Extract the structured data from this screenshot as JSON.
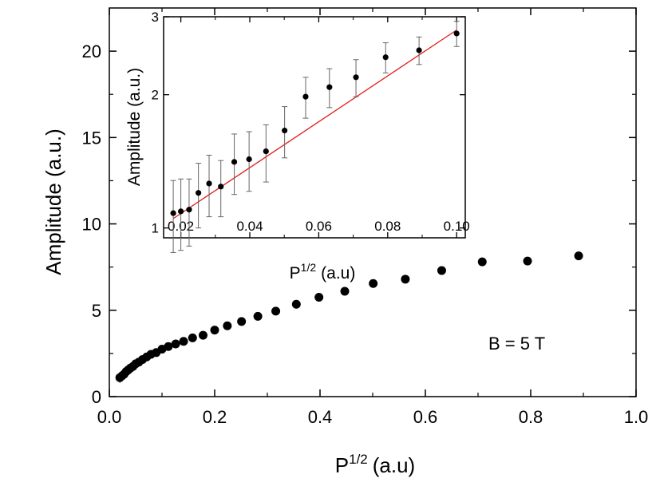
{
  "chart_data": [
    {
      "id": "main",
      "type": "scatter",
      "xlabel": "P",
      "xlabel_sup": "1/2",
      "xlabel_unit": "(a.u)",
      "ylabel": "Amplitude (a.u.)",
      "xlim": [
        0.0,
        1.0
      ],
      "ylim": [
        0,
        22.5
      ],
      "xticks": [
        0.0,
        0.2,
        0.4,
        0.6,
        0.8,
        1.0
      ],
      "xtick_labels": [
        "0.0",
        "0.2",
        "0.4",
        "0.6",
        "0.8",
        "1.0"
      ],
      "yticks": [
        0,
        5,
        10,
        15,
        20
      ],
      "ytick_labels": [
        "0",
        "5",
        "10",
        "15",
        "20"
      ],
      "annotation": "B = 5 T",
      "series": [
        {
          "name": "data",
          "x": [
            0.02,
            0.024,
            0.028,
            0.032,
            0.036,
            0.04,
            0.045,
            0.05,
            0.056,
            0.063,
            0.071,
            0.079,
            0.089,
            0.1,
            0.112,
            0.126,
            0.141,
            0.158,
            0.178,
            0.2,
            0.224,
            0.251,
            0.282,
            0.316,
            0.355,
            0.398,
            0.447,
            0.501,
            0.562,
            0.631,
            0.708,
            0.794,
            0.891
          ],
          "y": [
            1.1,
            1.2,
            1.3,
            1.45,
            1.55,
            1.65,
            1.75,
            1.9,
            2.0,
            2.15,
            2.3,
            2.45,
            2.55,
            2.75,
            2.9,
            3.05,
            3.2,
            3.4,
            3.55,
            3.85,
            4.1,
            4.35,
            4.65,
            4.95,
            5.35,
            5.75,
            6.1,
            6.55,
            6.8,
            7.3,
            7.8,
            7.85,
            8.15
          ],
          "yerr": [
            0.3,
            0.28,
            0.26,
            0.25,
            0.24,
            0.23,
            0.22,
            0.21,
            0.2,
            0.2,
            0.19,
            0.19,
            0.18,
            0.18,
            0.17,
            0.17,
            0.16,
            0.16,
            0.16,
            0.15,
            0.15,
            0.15,
            0.15,
            0.14,
            0.14,
            0.14,
            0.14,
            0.14,
            0.14,
            0.14,
            0.14,
            0.14,
            0.14
          ]
        }
      ]
    },
    {
      "id": "inset",
      "type": "scatter",
      "scale": "log-y",
      "xlabel": "P",
      "xlabel_sup": "1/2",
      "xlabel_unit": "(a.u)",
      "ylabel": "Amplitude (a.u.)",
      "xlim": [
        0.015,
        0.1025
      ],
      "ylim": [
        0.95,
        3.0
      ],
      "xticks": [
        0.02,
        0.04,
        0.06,
        0.08,
        0.1
      ],
      "xtick_labels": [
        "0.02",
        "0.04",
        "0.06",
        "0.08",
        "0.10"
      ],
      "yticks": [
        1,
        2,
        3
      ],
      "ytick_labels": [
        "1",
        "2",
        "3"
      ],
      "series": [
        {
          "name": "data",
          "x": [
            0.0178,
            0.02,
            0.0224,
            0.0251,
            0.0282,
            0.0316,
            0.0355,
            0.0398,
            0.0447,
            0.0501,
            0.0562,
            0.0631,
            0.0708,
            0.0794,
            0.0891,
            0.1
          ],
          "y": [
            1.08,
            1.09,
            1.1,
            1.2,
            1.26,
            1.24,
            1.41,
            1.43,
            1.49,
            1.66,
            1.98,
            2.08,
            2.19,
            2.43,
            2.52,
            2.75
          ],
          "yerr": [
            0.2,
            0.2,
            0.19,
            0.2,
            0.2,
            0.18,
            0.22,
            0.22,
            0.22,
            0.22,
            0.21,
            0.21,
            0.21,
            0.19,
            0.18,
            0.18
          ]
        },
        {
          "name": "fit",
          "type": "line",
          "color": "#e02020",
          "x": [
            0.0178,
            0.1
          ],
          "y": [
            1.05,
            2.8
          ]
        }
      ]
    }
  ]
}
